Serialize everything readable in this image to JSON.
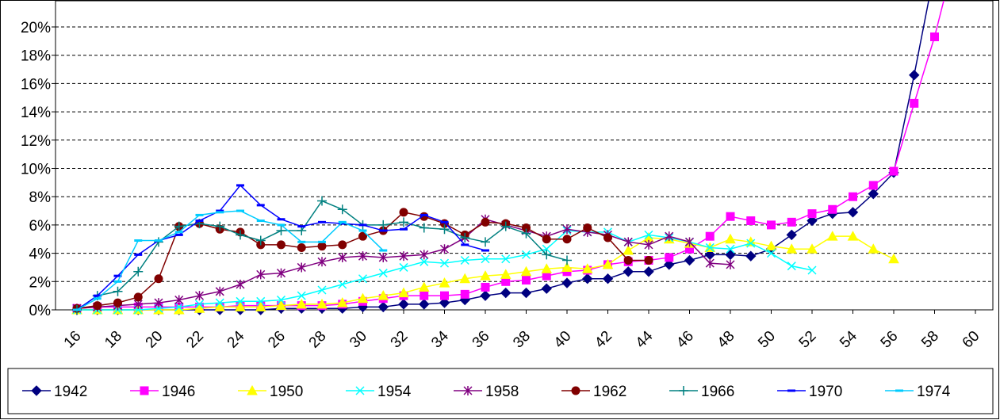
{
  "chart_data": {
    "type": "line",
    "x": [
      16,
      17,
      18,
      19,
      20,
      21,
      22,
      23,
      24,
      25,
      26,
      27,
      28,
      29,
      30,
      31,
      32,
      33,
      34,
      35,
      36,
      37,
      38,
      39,
      40,
      41,
      42,
      43,
      44,
      45,
      46,
      47,
      48,
      49,
      50,
      51,
      52,
      53,
      54,
      55,
      56,
      57,
      58,
      59
    ],
    "xlim": [
      16,
      60
    ],
    "xticks": [
      16,
      18,
      20,
      22,
      24,
      26,
      28,
      30,
      32,
      34,
      36,
      38,
      40,
      42,
      44,
      46,
      48,
      50,
      52,
      54,
      56,
      58,
      60
    ],
    "ylim": [
      0,
      20
    ],
    "yticks": [
      {
        "value": 0,
        "label": "0%"
      },
      {
        "value": 2,
        "label": "2%"
      },
      {
        "value": 4,
        "label": "4%"
      },
      {
        "value": 6,
        "label": "6%"
      },
      {
        "value": 8,
        "label": "8%"
      },
      {
        "value": 10,
        "label": "10%"
      },
      {
        "value": 12,
        "label": "12%"
      },
      {
        "value": 14,
        "label": "14%"
      },
      {
        "value": 16,
        "label": "16%"
      },
      {
        "value": 18,
        "label": "18%"
      },
      {
        "value": 20,
        "label": "20%"
      }
    ],
    "grid": true,
    "legend": "bottom",
    "series": [
      {
        "name": "1942",
        "color": "#000080",
        "marker": "diamond",
        "values": [
          0,
          0,
          0,
          0,
          0,
          0,
          0,
          0,
          0,
          0,
          0.1,
          0.1,
          0.1,
          0.1,
          0.2,
          0.2,
          0.4,
          0.4,
          0.5,
          0.7,
          1.0,
          1.2,
          1.2,
          1.5,
          1.9,
          2.2,
          2.2,
          2.7,
          2.7,
          3.2,
          3.5,
          3.9,
          3.9,
          3.8,
          4.3,
          5.3,
          6.3,
          6.8,
          6.9,
          8.2,
          9.7,
          16.6,
          24,
          null
        ]
      },
      {
        "name": "1946",
        "color": "#FF00FF",
        "marker": "square",
        "values": [
          0.1,
          0.2,
          0.2,
          0.2,
          0.2,
          0.2,
          0.2,
          0.2,
          0.3,
          0.3,
          0.3,
          0.3,
          0.3,
          0.4,
          0.6,
          0.8,
          1.0,
          1.0,
          1.0,
          1.1,
          1.6,
          2.0,
          2.1,
          2.4,
          2.7,
          2.8,
          3.2,
          3.4,
          3.5,
          3.7,
          4.3,
          5.2,
          6.6,
          6.3,
          6.0,
          6.2,
          6.8,
          7.1,
          8.0,
          8.8,
          9.8,
          14.6,
          19.3,
          25
        ]
      },
      {
        "name": "1950",
        "color": "#FFFF00",
        "marker": "triangle",
        "values": [
          0,
          0,
          0,
          0,
          0,
          0,
          0.1,
          0.2,
          0.2,
          0.2,
          0.3,
          0.4,
          0.4,
          0.5,
          0.8,
          1.0,
          1.2,
          1.6,
          1.9,
          2.2,
          2.4,
          2.5,
          2.7,
          2.9,
          3.0,
          2.9,
          3.2,
          4.2,
          5.1,
          5.0,
          4.7,
          4.4,
          5.0,
          4.8,
          4.5,
          4.3,
          4.3,
          5.2,
          5.2,
          4.3,
          3.6,
          null,
          null,
          null
        ]
      },
      {
        "name": "1954",
        "color": "#00FFFF",
        "marker": "x",
        "values": [
          0,
          0,
          0,
          0,
          0.1,
          0.2,
          0.4,
          0.5,
          0.6,
          0.6,
          0.7,
          1.0,
          1.4,
          1.8,
          2.2,
          2.6,
          3.0,
          3.4,
          3.3,
          3.5,
          3.6,
          3.6,
          3.9,
          4.3,
          5.6,
          5.5,
          5.5,
          4.8,
          5.3,
          5.1,
          4.8,
          4.4,
          4.3,
          4.7,
          4.0,
          3.1,
          2.8,
          null,
          null,
          null,
          null,
          null,
          null,
          null
        ]
      },
      {
        "name": "1958",
        "color": "#800080",
        "marker": "star",
        "values": [
          0.1,
          0.2,
          0.3,
          0.4,
          0.5,
          0.7,
          1.0,
          1.3,
          1.8,
          2.5,
          2.6,
          3.0,
          3.4,
          3.7,
          3.8,
          3.7,
          3.8,
          3.9,
          4.3,
          5.1,
          6.4,
          6.0,
          5.6,
          5.2,
          5.7,
          5.5,
          5.3,
          4.8,
          4.6,
          5.2,
          4.8,
          3.3,
          3.2,
          null,
          null,
          null,
          null,
          null,
          null,
          null,
          null,
          null,
          null,
          null
        ]
      },
      {
        "name": "1962",
        "color": "#800000",
        "marker": "circle",
        "values": [
          0.1,
          0.3,
          0.5,
          0.9,
          2.2,
          5.9,
          6.1,
          5.7,
          5.5,
          4.6,
          4.6,
          4.4,
          4.5,
          4.6,
          5.2,
          5.6,
          6.9,
          6.6,
          6.1,
          5.3,
          6.2,
          6.1,
          5.8,
          5.0,
          5.0,
          5.8,
          5.1,
          3.5,
          3.5,
          null,
          null,
          null,
          null,
          null,
          null,
          null,
          null,
          null,
          null,
          null,
          null,
          null,
          null,
          null
        ]
      },
      {
        "name": "1966",
        "color": "#008080",
        "marker": "plus",
        "values": [
          0,
          1.0,
          1.3,
          2.7,
          4.8,
          5.9,
          6.1,
          5.9,
          5.3,
          4.9,
          5.6,
          5.6,
          7.7,
          7.1,
          6.0,
          6.0,
          6.2,
          5.8,
          5.7,
          5.1,
          4.8,
          5.9,
          5.4,
          3.9,
          3.5,
          null,
          null,
          null,
          null,
          null,
          null,
          null,
          null,
          null,
          null,
          null,
          null,
          null,
          null,
          null,
          null,
          null,
          null,
          null
        ]
      },
      {
        "name": "1970",
        "color": "#0000FF",
        "marker": "dash",
        "values": [
          0,
          1.0,
          2.4,
          3.9,
          4.9,
          5.3,
          6.3,
          7.0,
          8.8,
          7.4,
          6.4,
          5.9,
          6.2,
          6.1,
          6.0,
          5.6,
          5.7,
          6.7,
          6.2,
          4.6,
          4.2,
          null,
          null,
          null,
          null,
          null,
          null,
          null,
          null,
          null,
          null,
          null,
          null,
          null,
          null,
          null,
          null,
          null,
          null,
          null,
          null,
          null,
          null,
          null
        ]
      },
      {
        "name": "1974",
        "color": "#00CCFF",
        "marker": "dash",
        "values": [
          0,
          0.8,
          2.0,
          4.9,
          4.9,
          5.5,
          6.7,
          6.9,
          7.0,
          6.3,
          6.0,
          4.8,
          4.8,
          6.2,
          5.6,
          4.2,
          null,
          null,
          null,
          null,
          null,
          null,
          null,
          null,
          null,
          null,
          null,
          null,
          null,
          null,
          null,
          null,
          null,
          null,
          null,
          null,
          null,
          null,
          null,
          null,
          null,
          null,
          null,
          null
        ]
      }
    ]
  }
}
